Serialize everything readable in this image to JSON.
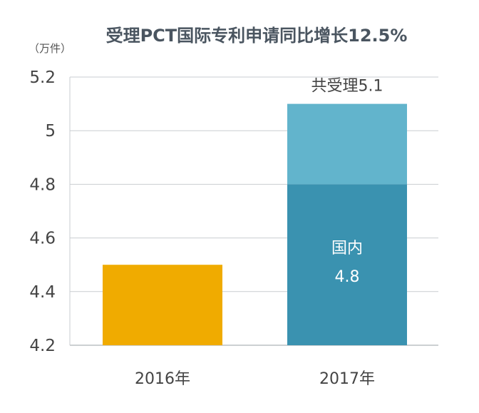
{
  "chart_data": {
    "type": "bar",
    "title": "受理PCT国际专利申请同比增长12.5%",
    "ylabel": "（万件）",
    "categories": [
      "2016年",
      "2017年"
    ],
    "ylim": [
      4.2,
      5.2
    ],
    "yticks": [
      "4.2",
      "4.4",
      "4.6",
      "4.8",
      "5",
      "5.2"
    ],
    "grid": true,
    "bars": [
      {
        "category": "2016年",
        "segments": [
          {
            "value": 4.5,
            "color": "#f0ab00"
          }
        ]
      },
      {
        "category": "2017年",
        "segments": [
          {
            "name": "国内",
            "value": 4.8,
            "color": "#3a92b0",
            "label_name": "国内",
            "label_value": "4.8"
          },
          {
            "value": 5.1,
            "color": "#62b4cc"
          }
        ]
      }
    ],
    "annotations": [
      {
        "category": "2017年",
        "text": "共受理5.1"
      }
    ]
  }
}
